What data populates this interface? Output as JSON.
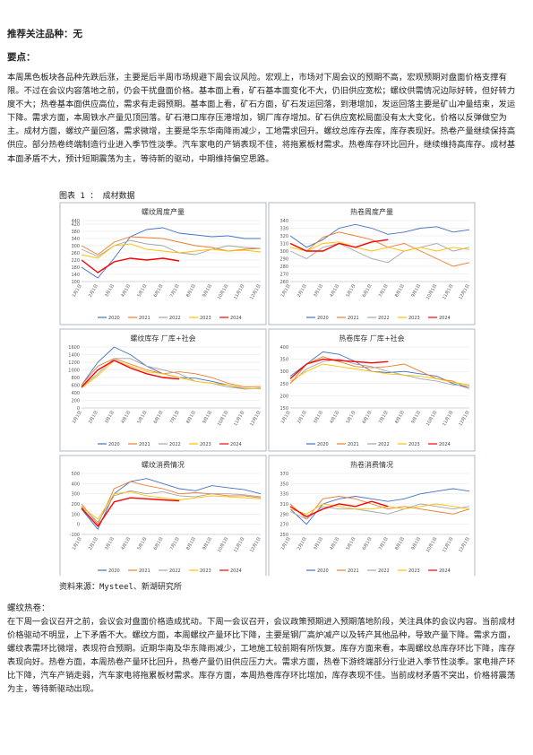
{
  "header": {
    "focus_line": "推荐关注品种：无",
    "key_points_title": "要点："
  },
  "summary": "本周黑色板块各品种先跌后涨，主要是后半周市场规避下周会议风险。宏观上，市场对下周会议的预期不高，宏观预期对盘面价格支撑有限。不过在会议内容落地之前，仍会干扰盘面价格。基本面上看，矿石基本面变化不大，仍旧供应宽松；螺纹供需情况边际好转，但好转力度不大；热卷基本面供应高位，需求有走弱预期。基本面上看，矿石方面，矿石发运回落，到港增加，发运回落主要是矿山冲量结束，发运下降。需求方面，本周铁水产量见顶回落。矿石港口库存压港增加，钢厂库存增加。矿石供应宽松局面没有太大变化，价格以反弹做空为主。成材方面，螺纹产量回落，需求微增，主要是华东华南降雨减少，工地需求回升。螺纹总库存去库，库存表现好。热卷产量继续保持高供应。部分热卷终端制造行业进入季节性淡季。汽车家电的产销表现不佳，将拖累板材需求。热卷库存环比回升，继续维持高库存。成材基本面矛盾不大，预计短期震荡为主，等待新的驱动，中期维持偏空思路。",
  "figure": {
    "caption": "图表 1 ： 成材数据",
    "source": "资料来源：Mysteel、新湖研究所"
  },
  "section": {
    "title": "螺纹热卷：",
    "body": "在下周一会议召开之前，会议会对盘面价格造成扰动。下周一会议召开，会议政策预期进入预期落地阶段，关注具体的会议内容。当前成材价格驱动不明显，上下矛盾不大。螺纹方面，本周螺纹产量环比下降，主要是钢厂高炉减产以及转产其他品种，导致产量下降。需求方面，螺纹表需环比微增，表现符合预期。近期华南及华东降雨减少，工地施工较前期有所恢复。库存方面来看，本周螺纹总库存环比下降，库存表现向好。热卷方面，本周热卷产量环比回升，热卷产量仍旧供应压力大。需求方面，热卷下游终端部分行业进入季节性淡季。家电排产环比下降，汽车产销走弱，汽车家电将拖累板材需求。库存方面，本周热卷库存环比增加，库存表现不佳。当前成材矛盾不突出，价格将震荡为主，等待新驱动出现。"
  },
  "chart_data": [
    {
      "type": "line",
      "title": "螺纹周度产量",
      "ylim": [
        100,
        440
      ],
      "yticks": [
        100,
        140,
        180,
        220,
        260,
        300,
        340,
        380,
        420,
        440
      ],
      "x": [
        "1月1日",
        "2月1日",
        "3月1日",
        "4月1日",
        "5月1日",
        "6月1日",
        "7月1日",
        "8月1日",
        "9月1日",
        "10月1日",
        "11月1日",
        "12月1日"
      ],
      "series": [
        {
          "name": "2020",
          "color": "#4472c4",
          "values": [
            180,
            120,
            230,
            350,
            390,
            400,
            370,
            360,
            350,
            355,
            340,
            340
          ]
        },
        {
          "name": "2021",
          "color": "#ed7d31",
          "values": [
            300,
            250,
            320,
            350,
            345,
            340,
            320,
            300,
            290,
            270,
            280,
            285
          ]
        },
        {
          "name": "2022",
          "color": "#a5a5a5",
          "values": [
            280,
            240,
            300,
            330,
            310,
            300,
            260,
            250,
            280,
            300,
            290,
            285
          ]
        },
        {
          "name": "2023",
          "color": "#ffc000",
          "values": [
            250,
            230,
            300,
            310,
            280,
            270,
            260,
            270,
            280,
            270,
            275,
            265
          ]
        },
        {
          "name": "2024",
          "color": "#ff0000",
          "values": [
            220,
            150,
            210,
            230,
            220,
            230,
            215,
            null,
            null,
            null,
            null,
            null
          ]
        }
      ]
    },
    {
      "type": "line",
      "title": "热卷周度产量",
      "ylim": [
        260,
        340
      ],
      "yticks": [
        260,
        270,
        280,
        290,
        300,
        310,
        320,
        330,
        340
      ],
      "x": [
        "1月1日",
        "2月1日",
        "3月1日",
        "4月1日",
        "5月1日",
        "6月1日",
        "7月1日",
        "8月1日",
        "9月1日",
        "10月1日",
        "11月1日",
        "12月1日"
      ],
      "series": [
        {
          "name": "2020",
          "color": "#4472c4",
          "values": [
            320,
            305,
            315,
            330,
            335,
            330,
            322,
            325,
            330,
            332,
            325,
            328
          ]
        },
        {
          "name": "2021",
          "color": "#ed7d31",
          "values": [
            310,
            300,
            318,
            325,
            320,
            315,
            305,
            310,
            300,
            290,
            280,
            285
          ]
        },
        {
          "name": "2022",
          "color": "#a5a5a5",
          "values": [
            300,
            290,
            305,
            310,
            300,
            290,
            285,
            300,
            305,
            310,
            300,
            305
          ]
        },
        {
          "name": "2023",
          "color": "#ffc000",
          "values": [
            305,
            300,
            310,
            312,
            305,
            300,
            305,
            300,
            305,
            300,
            305,
            302
          ]
        },
        {
          "name": "2024",
          "color": "#ff0000",
          "values": [
            310,
            300,
            300,
            310,
            305,
            312,
            315,
            null,
            null,
            null,
            null,
            null
          ]
        }
      ]
    },
    {
      "type": "line",
      "title": "螺纹库存    厂库+社会",
      "ylim": [
        0,
        1600
      ],
      "yticks": [
        0,
        200,
        400,
        600,
        800,
        1000,
        1200,
        1400,
        1600
      ],
      "x": [
        "1月1日",
        "2月1日",
        "3月1日",
        "4月1日",
        "5月1日",
        "6月1日",
        "7月1日",
        "8月1日",
        "9月1日",
        "10月1日",
        "11月1日",
        "12月1日"
      ],
      "series": [
        {
          "name": "2020",
          "color": "#4472c4",
          "values": [
            600,
            1200,
            1600,
            1400,
            1100,
            900,
            800,
            780,
            700,
            600,
            500,
            520
          ]
        },
        {
          "name": "2021",
          "color": "#ed7d31",
          "values": [
            600,
            1100,
            1300,
            1150,
            1000,
            900,
            950,
            900,
            800,
            650,
            550,
            560
          ]
        },
        {
          "name": "2022",
          "color": "#a5a5a5",
          "values": [
            550,
            900,
            1300,
            1300,
            1100,
            1000,
            900,
            700,
            650,
            550,
            500,
            510
          ]
        },
        {
          "name": "2023",
          "color": "#ffc000",
          "values": [
            520,
            850,
            1250,
            1100,
            950,
            900,
            800,
            700,
            650,
            600,
            520,
            500
          ]
        },
        {
          "name": "2024",
          "color": "#ff0000",
          "values": [
            550,
            1000,
            1250,
            1050,
            900,
            800,
            760,
            null,
            null,
            null,
            null,
            null
          ]
        }
      ]
    },
    {
      "type": "line",
      "title": "热卷库存    厂库+社会",
      "ylim": [
        150,
        400
      ],
      "yticks": [
        150,
        200,
        250,
        300,
        350,
        400
      ],
      "x": [
        "1月1日",
        "2月1日",
        "3月1日",
        "4月1日",
        "5月1日",
        "6月1日",
        "7月1日",
        "8月1日",
        "9月1日",
        "10月1日",
        "11月1日",
        "12月1日"
      ],
      "series": [
        {
          "name": "2020",
          "color": "#4472c4",
          "values": [
            280,
            330,
            380,
            370,
            340,
            300,
            295,
            300,
            290,
            280,
            250,
            230
          ]
        },
        {
          "name": "2021",
          "color": "#ed7d31",
          "values": [
            250,
            330,
            360,
            340,
            320,
            315,
            320,
            330,
            300,
            270,
            260,
            230
          ]
        },
        {
          "name": "2022",
          "color": "#a5a5a5",
          "values": [
            250,
            310,
            340,
            350,
            330,
            320,
            300,
            285,
            270,
            260,
            245,
            240
          ]
        },
        {
          "name": "2023",
          "color": "#ffc000",
          "values": [
            260,
            300,
            330,
            320,
            310,
            300,
            290,
            285,
            280,
            270,
            255,
            245
          ]
        },
        {
          "name": "2024",
          "color": "#ff0000",
          "values": [
            270,
            330,
            350,
            345,
            340,
            335,
            340,
            null,
            null,
            null,
            null,
            null
          ]
        }
      ]
    },
    {
      "type": "line",
      "title": "螺纹消费情况",
      "ylim": [
        -100,
        500
      ],
      "yticks": [
        -100,
        0,
        100,
        200,
        300,
        400,
        500
      ],
      "x": [
        "1月1日",
        "2月1日",
        "3月1日",
        "4月1日",
        "5月1日",
        "6月1日",
        "7月1日",
        "8月1日",
        "9月1日",
        "10月1日",
        "11月1日",
        "12月1日"
      ],
      "series": [
        {
          "name": "2020",
          "color": "#4472c4",
          "values": [
            150,
            -50,
            300,
            420,
            450,
            400,
            350,
            330,
            380,
            360,
            340,
            300
          ]
        },
        {
          "name": "2021",
          "color": "#ed7d31",
          "values": [
            200,
            0,
            350,
            420,
            380,
            350,
            300,
            310,
            300,
            280,
            280,
            260
          ]
        },
        {
          "name": "2022",
          "color": "#a5a5a5",
          "values": [
            180,
            20,
            280,
            330,
            300,
            320,
            280,
            270,
            300,
            300,
            290,
            270
          ]
        },
        {
          "name": "2023",
          "color": "#ffc000",
          "values": [
            170,
            50,
            300,
            320,
            280,
            260,
            240,
            260,
            280,
            270,
            260,
            250
          ]
        },
        {
          "name": "2024",
          "color": "#ff0000",
          "values": [
            160,
            -20,
            220,
            260,
            250,
            240,
            230,
            null,
            null,
            null,
            null,
            null
          ]
        }
      ]
    },
    {
      "type": "line",
      "title": "热卷消费情况",
      "ylim": [
        250,
        370
      ],
      "yticks": [
        250,
        270,
        290,
        310,
        330,
        350,
        370
      ],
      "x": [
        "1月1日",
        "2月1日",
        "3月1日",
        "4月1日",
        "5月1日",
        "6月1日",
        "7月1日",
        "8月1日",
        "9月1日",
        "10月1日",
        "11月1日",
        "12月1日"
      ],
      "series": [
        {
          "name": "2020",
          "color": "#4472c4",
          "values": [
            300,
            270,
            310,
            320,
            325,
            320,
            315,
            320,
            330,
            335,
            340,
            335
          ]
        },
        {
          "name": "2021",
          "color": "#ed7d31",
          "values": [
            310,
            280,
            320,
            325,
            320,
            310,
            300,
            305,
            300,
            295,
            290,
            300
          ]
        },
        {
          "name": "2022",
          "color": "#a5a5a5",
          "values": [
            295,
            280,
            305,
            300,
            300,
            295,
            290,
            300,
            310,
            305,
            300,
            305
          ]
        },
        {
          "name": "2023",
          "color": "#ffc000",
          "values": [
            300,
            290,
            310,
            305,
            300,
            300,
            305,
            300,
            305,
            310,
            305,
            300
          ]
        },
        {
          "name": "2024",
          "color": "#ff0000",
          "values": [
            305,
            285,
            300,
            310,
            305,
            315,
            305,
            null,
            null,
            null,
            null,
            null
          ]
        }
      ]
    }
  ]
}
